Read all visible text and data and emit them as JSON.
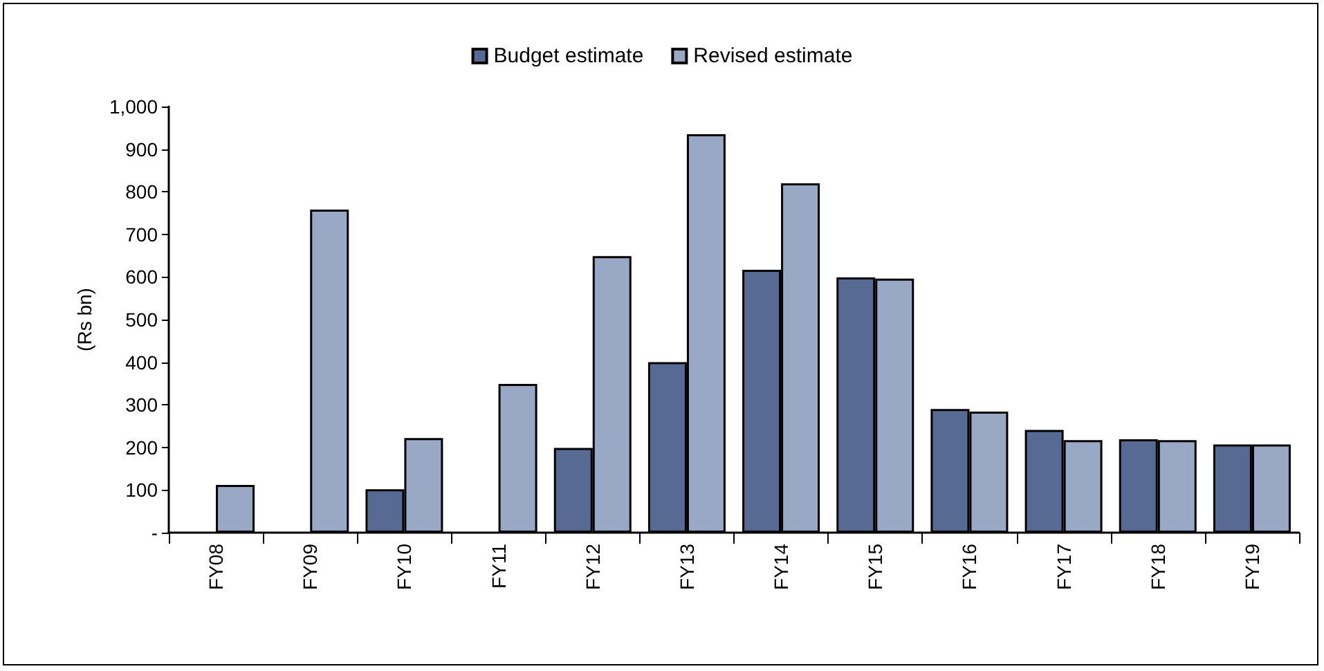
{
  "chart_data": {
    "type": "bar",
    "ylabel": "(Rs bn)",
    "categories": [
      "FY08",
      "FY09",
      "FY10",
      "FY11",
      "FY12",
      "FY13",
      "FY14",
      "FY15",
      "FY16",
      "FY17",
      "FY18",
      "FY19"
    ],
    "series": [
      {
        "name": "Budget estimate",
        "color": "#576a93",
        "values": [
          null,
          null,
          102,
          null,
          199,
          400,
          617,
          599,
          290,
          241,
          219,
          207
        ]
      },
      {
        "name": "Revised estimate",
        "color": "#99a8c4",
        "values": [
          112,
          758,
          222,
          349,
          649,
          935,
          820,
          596,
          284,
          217,
          217,
          207
        ]
      }
    ],
    "ylim": [
      0,
      1000
    ],
    "yticks": [
      {
        "value": 0,
        "label": "-"
      },
      100,
      200,
      300,
      400,
      500,
      600,
      700,
      800,
      900,
      {
        "value": 1000,
        "label": "1,000"
      }
    ],
    "grid": false,
    "legend": "top"
  }
}
